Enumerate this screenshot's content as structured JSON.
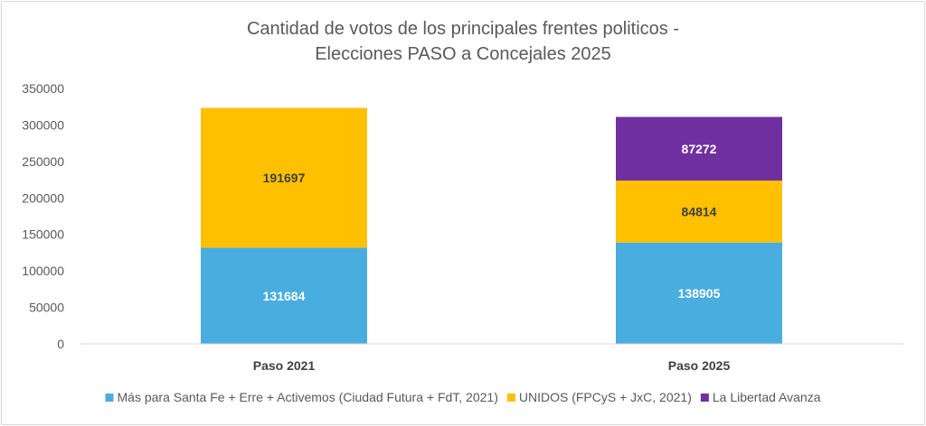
{
  "chart_data": {
    "type": "bar",
    "stacked": true,
    "title": "Cantidad de votos de los principales frentes politicos -",
    "subtitle": "Elecciones PASO a Concejales 2025",
    "categories": [
      "Paso 2021",
      "Paso 2025"
    ],
    "series": [
      {
        "name": "Más para Santa Fe + Erre + Activemos (Ciudad Futura + FdT, 2021)",
        "values": [
          131684,
          138905
        ],
        "color": "#4AADE0",
        "label_color": "#ffffff"
      },
      {
        "name": "UNIDOS (FPCyS + JxC, 2021)",
        "values": [
          191697,
          84814
        ],
        "color": "#FFC000",
        "label_color": "#404040"
      },
      {
        "name": "La Libertad Avanza",
        "values": [
          null,
          87272
        ],
        "color": "#7030A0",
        "label_color": "#ffffff"
      }
    ],
    "ylim": [
      0,
      350000
    ],
    "yticks": [
      0,
      50000,
      100000,
      150000,
      200000,
      250000,
      300000,
      350000
    ],
    "ytick_labels": [
      "0",
      "50000",
      "100000",
      "150000",
      "200000",
      "250000",
      "300000",
      "350000"
    ],
    "grid": false,
    "legend": "bottom",
    "xlabel": "",
    "ylabel": ""
  }
}
